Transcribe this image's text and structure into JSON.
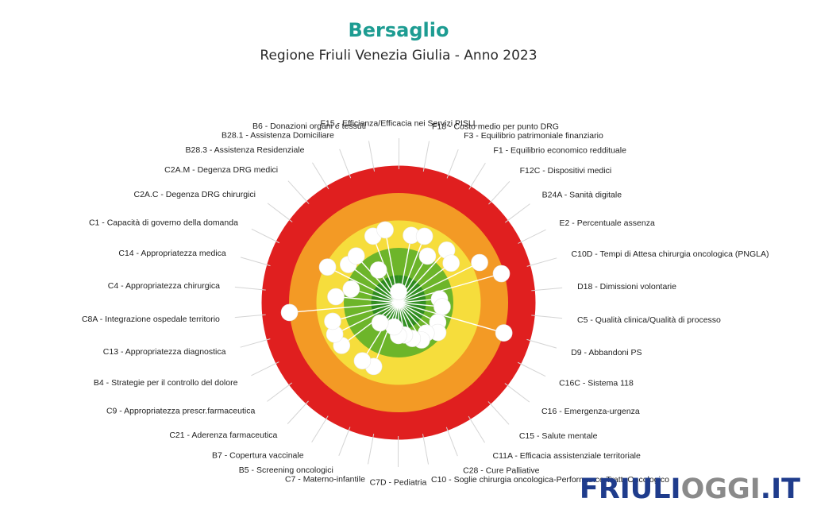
{
  "chart_data": {
    "type": "target",
    "title": "Bersaglio",
    "subtitle": "Regione Friuli Venezia Giulia - Anno 2023",
    "rings": [
      {
        "band": 1,
        "color": "#2e8b1f"
      },
      {
        "band": 2,
        "color": "#6db52a"
      },
      {
        "band": 3,
        "color": "#f6dd3c"
      },
      {
        "band": 4,
        "color": "#f39a25"
      },
      {
        "band": 5,
        "color": "#e01f1f"
      }
    ],
    "scale_max": 5,
    "indicators": [
      {
        "label": "F15 - Efficienza/Efficacia nei Servizi PISLL",
        "score": 0.4
      },
      {
        "label": "F18 - Costo medio per punto DRG",
        "score": 2.5
      },
      {
        "label": "F3 - Equilibrio patrimoniale finanziario",
        "score": 2.6
      },
      {
        "label": "F1 - Equilibrio economico reddituale",
        "score": 2.0
      },
      {
        "label": "F12C - Dispositivi medici",
        "score": 2.6
      },
      {
        "label": "B24A - Sanità digitale",
        "score": 2.4
      },
      {
        "label": "E2 - Percentuale assenza",
        "score": 3.3
      },
      {
        "label": "C10D - Tempi di Attesa chirurgia oncologica (PNGLA)",
        "score": 3.9
      },
      {
        "label": "D18 - Dimissioni volontarie",
        "score": 1.5
      },
      {
        "label": "C5 - Qualità clinica/Qualità di processo",
        "score": 1.6
      },
      {
        "label": "D9 - Abbandoni PS",
        "score": 4.0
      },
      {
        "label": "C16C - Sistema 118",
        "score": 1.6
      },
      {
        "label": "C16 - Emergenza-urgenza",
        "score": 1.8
      },
      {
        "label": "C15 - Salute mentale",
        "score": 1.5
      },
      {
        "label": "C11A - Efficacia assistenziale territoriale",
        "score": 1.6
      },
      {
        "label": "C28 - Cure Palliative",
        "score": 1.4
      },
      {
        "label": "C10 - Soglie chirurgia oncologica-Performance Tratt. Oncologico",
        "score": 1.2
      },
      {
        "label": "C7D - Pediatria",
        "score": 1.2
      },
      {
        "label": "C7 - Materno-infantile",
        "score": 0.9
      },
      {
        "label": "B5 - Screening oncologici",
        "score": 2.5
      },
      {
        "label": "B7 - Copertura vaccinale",
        "score": 2.5
      },
      {
        "label": "C21 - Aderenza farmaceutica",
        "score": 1.0
      },
      {
        "label": "C9 - Appropriatezza prescr.farmaceutica",
        "score": 2.6
      },
      {
        "label": "B4 - Strategie per il controllo del dolore",
        "score": 2.6
      },
      {
        "label": "C13 - Appropriatezza diagnostica",
        "score": 2.5
      },
      {
        "label": "C8A - Integrazione ospedale territorio",
        "score": 4.0
      },
      {
        "label": "C4 - Appropriatezza chirurgica",
        "score": 2.3
      },
      {
        "label": "C14 - Appropriatezza medica",
        "score": 1.8
      },
      {
        "label": "C1 - Capacità di governo della domanda",
        "score": 2.9
      },
      {
        "label": "C2A.C - Degenza DRG chirurgici",
        "score": 2.3
      },
      {
        "label": "C2A.M - Degenza DRG medici",
        "score": 2.3
      },
      {
        "label": "B28.3 - Assistenza Residenziale",
        "score": 1.4
      },
      {
        "label": "B28.1 - Assistenza Domiciliare",
        "score": 2.6
      },
      {
        "label": "B6 - Donazioni organi e tessuti",
        "score": 2.7
      }
    ]
  },
  "branding": {
    "title_color": "#1d9c92",
    "watermark_friuli": "FRIULI",
    "watermark_oggi": "OGGI",
    "watermark_it": ".IT",
    "watermark_primary_color": "#1f3c8c",
    "watermark_accent_color": "#8a8a8a"
  }
}
